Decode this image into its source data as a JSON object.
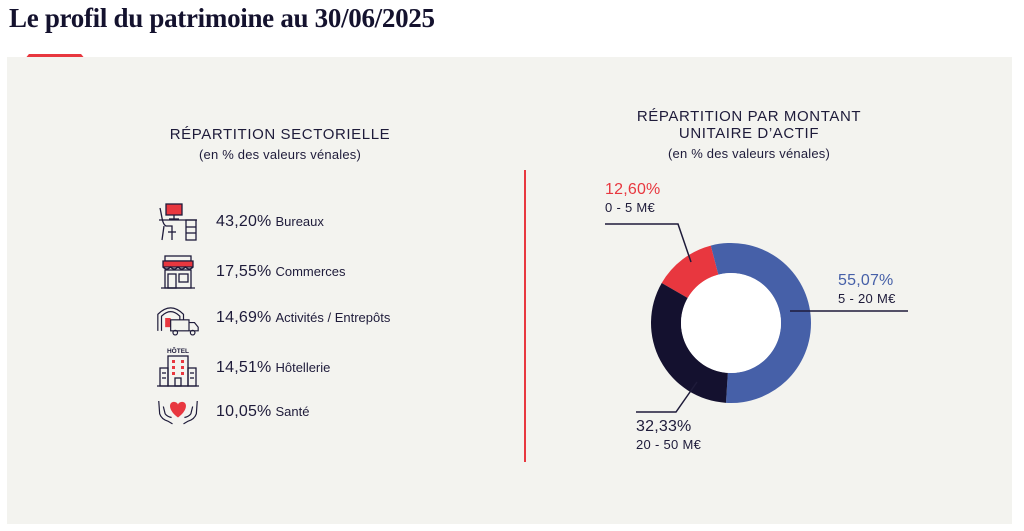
{
  "page": {
    "title": "Le profil du patrimoine au 30/06/2025"
  },
  "sector": {
    "title": "RÉPARTITION SECTORIELLE",
    "subtitle": "(en % des valeurs vénales)",
    "items": [
      {
        "pct": "43,20%",
        "label": "Bureaux",
        "icon": "office-desk-icon"
      },
      {
        "pct": "17,55%",
        "label": "Commerces",
        "icon": "storefront-icon"
      },
      {
        "pct": "14,69%",
        "label": "Activités / Entrepôts",
        "icon": "warehouse-truck-icon"
      },
      {
        "pct": "14,51%",
        "label": "Hôtellerie",
        "icon": "hotel-building-icon",
        "icon_text": "HÔTEL"
      },
      {
        "pct": "10,05%",
        "label": "Santé",
        "icon": "heart-hands-icon"
      }
    ]
  },
  "donut": {
    "title_line1": "RÉPARTITION PAR MONTANT",
    "title_line2": "UNITAIRE D’ACTIF",
    "subtitle": "(en % des valeurs vénales)",
    "labels": {
      "small": {
        "pct": "12,60%",
        "range": "0 - 5 M€"
      },
      "medium": {
        "pct": "55,07%",
        "range": "5 - 20 M€"
      },
      "large": {
        "pct": "32,33%",
        "range": "20 - 50 M€"
      }
    }
  },
  "colors": {
    "red": "#e8373f",
    "blue": "#4660a8",
    "navy": "#14112f",
    "panel": "#f3f3ef",
    "text": "#1e1b3a"
  },
  "chart_data": [
    {
      "type": "table",
      "title": "RÉPARTITION SECTORIELLE",
      "subtitle": "(en % des valeurs vénales)",
      "categories": [
        "Bureaux",
        "Commerces",
        "Activités / Entrepôts",
        "Hôtellerie",
        "Santé"
      ],
      "values": [
        43.2,
        17.55,
        14.69,
        14.51,
        10.05
      ]
    },
    {
      "type": "pie",
      "title": "RÉPARTITION PAR MONTANT UNITAIRE D’ACTIF",
      "subtitle": "(en % des valeurs vénales)",
      "categories": [
        "0 - 5 M€",
        "5 - 20 M€",
        "20 - 50 M€"
      ],
      "values": [
        12.6,
        55.07,
        32.33
      ],
      "colors": [
        "#e8373f",
        "#4660a8",
        "#14112f"
      ],
      "donut": true
    }
  ]
}
